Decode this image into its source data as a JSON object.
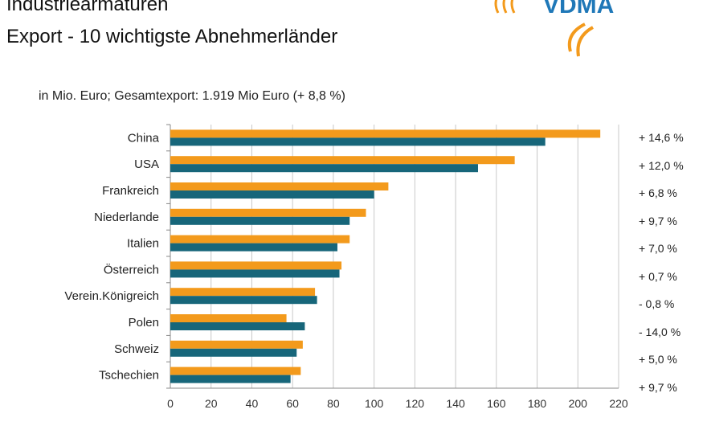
{
  "header": {
    "title_line1": "Industriearmaturen",
    "title_line2": "Export - 10 wichtigste Abnehmerländer",
    "logo_text": "VDMA"
  },
  "subtitle": "in Mio. Euro; Gesamtexport: 1.919 Mio Euro (+ 8,8 %)",
  "changes": [
    "+ 14,6 %",
    "+ 12,0 %",
    "+ 6,8 %",
    "+  9,7 %",
    "+ 7,0 %",
    "+ 0,7 %",
    "- 0,8 %",
    "- 14,0 %",
    "+ 5,0 %",
    "+ 9,7 %"
  ],
  "chart_data": {
    "type": "bar",
    "orientation": "horizontal",
    "categories": [
      "China",
      "USA",
      "Frankreich",
      "Niederlande",
      "Italien",
      "Österreich",
      "Verein.Königreich",
      "Polen",
      "Schweiz",
      "Tschechien"
    ],
    "series": [
      {
        "values": [
          211,
          169,
          107,
          96,
          88,
          84,
          71,
          57,
          65,
          64
        ],
        "color": "#F39A1C"
      },
      {
        "values": [
          184,
          151,
          100,
          88,
          82,
          83,
          72,
          66,
          62,
          59
        ],
        "color": "#17667A"
      }
    ],
    "xlim": [
      0,
      220
    ],
    "xticks": [
      0,
      20,
      40,
      60,
      80,
      100,
      120,
      140,
      160,
      180,
      200,
      220
    ],
    "grid": true
  }
}
